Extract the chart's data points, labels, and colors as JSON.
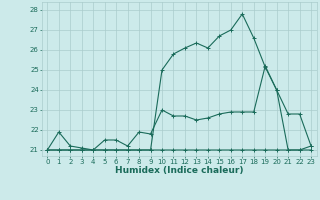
{
  "xlabel": "Humidex (Indice chaleur)",
  "bg_color": "#cceaea",
  "grid_color": "#aacccc",
  "line_color": "#1a6b5a",
  "xlim": [
    -0.5,
    23.5
  ],
  "ylim": [
    20.7,
    28.4
  ],
  "yticks": [
    21,
    22,
    23,
    24,
    25,
    26,
    27,
    28
  ],
  "xticks": [
    0,
    1,
    2,
    3,
    4,
    5,
    6,
    7,
    8,
    9,
    10,
    11,
    12,
    13,
    14,
    15,
    16,
    17,
    18,
    19,
    20,
    21,
    22,
    23
  ],
  "line1_x": [
    0,
    1,
    2,
    3,
    4,
    5,
    6,
    7,
    8,
    9,
    10,
    11,
    12,
    13,
    14,
    15,
    16,
    17,
    18,
    19,
    20,
    21,
    22,
    23
  ],
  "line1_y": [
    21.0,
    21.0,
    21.0,
    21.0,
    21.0,
    21.0,
    21.0,
    21.0,
    21.0,
    21.0,
    21.0,
    21.0,
    21.0,
    21.0,
    21.0,
    21.0,
    21.0,
    21.0,
    21.0,
    21.0,
    21.0,
    21.0,
    21.0,
    21.2
  ],
  "line2_x": [
    0,
    1,
    2,
    3,
    4,
    5,
    6,
    7,
    8,
    9,
    10,
    11,
    12,
    13,
    14,
    15,
    16,
    17,
    18,
    19,
    20,
    21,
    22,
    23
  ],
  "line2_y": [
    21.0,
    21.9,
    21.2,
    21.1,
    21.0,
    21.5,
    21.5,
    21.2,
    21.9,
    21.8,
    23.0,
    22.7,
    22.7,
    22.5,
    22.6,
    22.8,
    22.9,
    22.9,
    22.9,
    25.2,
    24.0,
    22.8,
    22.8,
    21.2
  ],
  "line3_x": [
    0,
    1,
    2,
    3,
    4,
    5,
    6,
    7,
    8,
    9,
    10,
    11,
    12,
    13,
    14,
    15,
    16,
    17,
    18,
    19,
    20,
    21,
    22,
    23
  ],
  "line3_y": [
    21.0,
    21.0,
    21.0,
    21.0,
    21.0,
    21.0,
    21.0,
    21.0,
    21.0,
    21.0,
    25.0,
    25.8,
    26.1,
    26.35,
    26.1,
    26.7,
    27.0,
    27.8,
    26.6,
    25.15,
    24.0,
    21.0,
    21.0,
    21.0
  ]
}
